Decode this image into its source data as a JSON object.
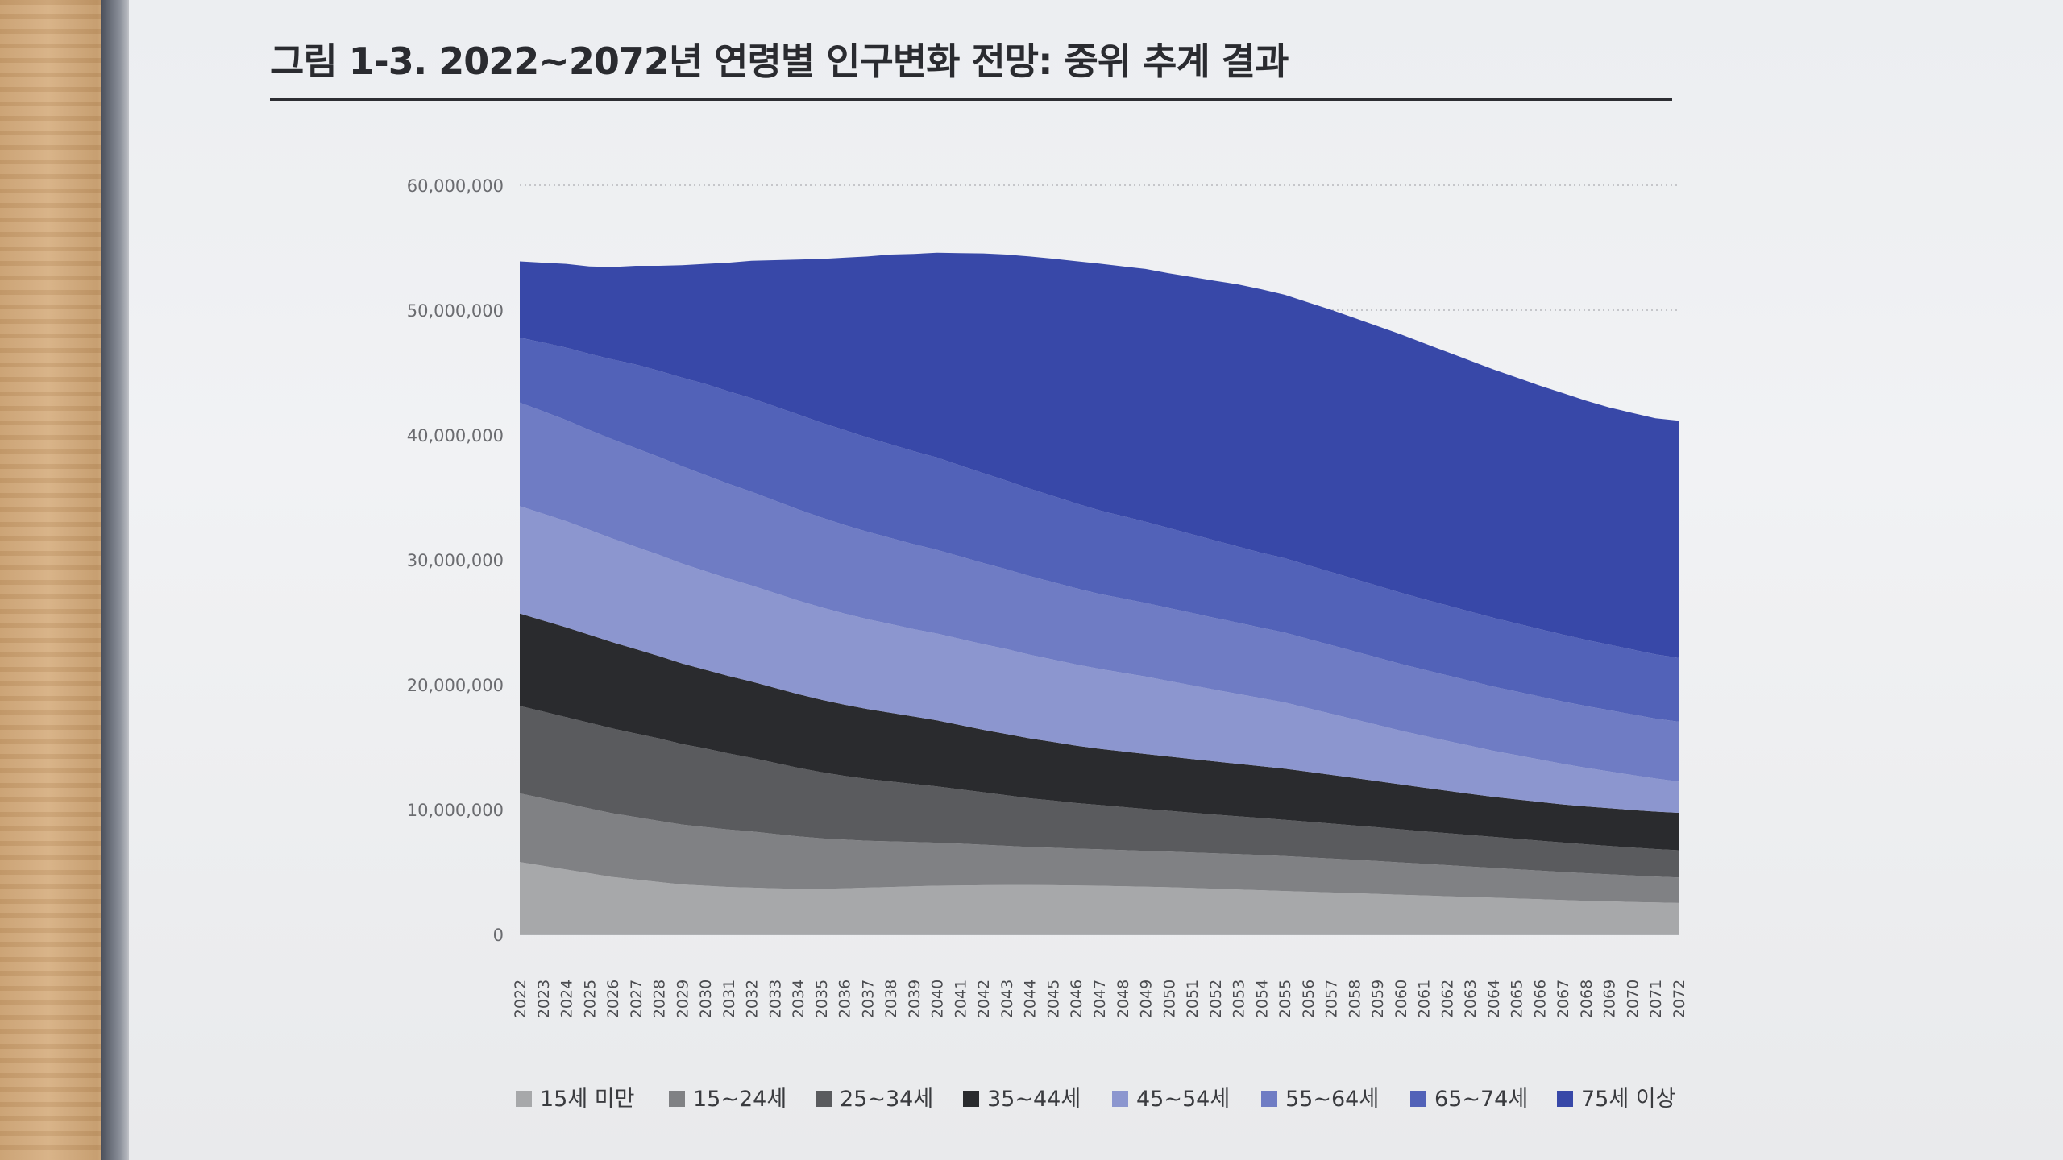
{
  "figure": {
    "title": "그림 1-3. 2022~2072년 연령별 인구변화 전망: 중위 추계 결과"
  },
  "chart_data": {
    "type": "area",
    "stacked": true,
    "title": "그림 1-3. 2022~2072년 연령별 인구변화 전망: 중위 추계 결과",
    "xlabel": "",
    "ylabel": "",
    "ylim": [
      0,
      60000000
    ],
    "yticks": [
      0,
      10000000,
      20000000,
      30000000,
      40000000,
      50000000,
      60000000
    ],
    "ytick_labels": [
      "0",
      "10,000,000",
      "20,000,000",
      "30,000,000",
      "40,000,000",
      "50,000,000",
      "60,000,000"
    ],
    "grid": "horizontal dotted",
    "legend_position": "bottom",
    "x": [
      "2022",
      "2023",
      "2024",
      "2025",
      "2026",
      "2027",
      "2028",
      "2029",
      "2030",
      "2031",
      "2032",
      "2033",
      "2034",
      "2035",
      "2036",
      "2037",
      "2038",
      "2039",
      "2040",
      "2041",
      "2042",
      "2043",
      "2044",
      "2045",
      "2046",
      "2047",
      "2048",
      "2049",
      "2050",
      "2051",
      "2052",
      "2053",
      "2054",
      "2055",
      "2056",
      "2057",
      "2058",
      "2059",
      "2060",
      "2061",
      "2062",
      "2063",
      "2064",
      "2065",
      "2066",
      "2067",
      "2068",
      "2069",
      "2070",
      "2071",
      "2072"
    ],
    "series": [
      {
        "name": "15세 미만",
        "color": "#a7a8aa",
        "values": [
          5800000,
          5500000,
          5200000,
          4900000,
          4600000,
          4400000,
          4200000,
          4000000,
          3900000,
          3800000,
          3750000,
          3700000,
          3650000,
          3650000,
          3700000,
          3750000,
          3800000,
          3850000,
          3900000,
          3920000,
          3940000,
          3950000,
          3950000,
          3940000,
          3920000,
          3900000,
          3860000,
          3820000,
          3780000,
          3720000,
          3660000,
          3600000,
          3540000,
          3480000,
          3420000,
          3360000,
          3300000,
          3240000,
          3180000,
          3120000,
          3060000,
          3000000,
          2940000,
          2880000,
          2820000,
          2760000,
          2700000,
          2650000,
          2600000,
          2560000,
          2520000
        ]
      },
      {
        "name": "15~24세",
        "color": "#808184",
        "values": [
          5500000,
          5400000,
          5300000,
          5200000,
          5100000,
          5000000,
          4900000,
          4800000,
          4700000,
          4600000,
          4500000,
          4350000,
          4200000,
          4050000,
          3900000,
          3750000,
          3650000,
          3550000,
          3450000,
          3350000,
          3250000,
          3150000,
          3050000,
          3000000,
          2950000,
          2920000,
          2900000,
          2880000,
          2860000,
          2850000,
          2840000,
          2830000,
          2820000,
          2800000,
          2760000,
          2720000,
          2680000,
          2640000,
          2590000,
          2540000,
          2490000,
          2440000,
          2390000,
          2340000,
          2290000,
          2240000,
          2200000,
          2160000,
          2120000,
          2080000,
          2050000
        ]
      },
      {
        "name": "25~34세",
        "color": "#5a5b5e",
        "values": [
          7000000,
          6950000,
          6900000,
          6850000,
          6800000,
          6700000,
          6600000,
          6450000,
          6300000,
          6100000,
          5900000,
          5700000,
          5500000,
          5300000,
          5100000,
          4950000,
          4800000,
          4650000,
          4500000,
          4350000,
          4200000,
          4050000,
          3900000,
          3780000,
          3650000,
          3550000,
          3450000,
          3350000,
          3260000,
          3180000,
          3100000,
          3030000,
          2960000,
          2900000,
          2850000,
          2800000,
          2750000,
          2700000,
          2650000,
          2600000,
          2560000,
          2520000,
          2480000,
          2440000,
          2400000,
          2360000,
          2320000,
          2280000,
          2240000,
          2200000,
          2170000
        ]
      },
      {
        "name": "35~44세",
        "color": "#2a2b2e",
        "values": [
          7400000,
          7300000,
          7200000,
          7050000,
          6900000,
          6750000,
          6600000,
          6450000,
          6300000,
          6200000,
          6100000,
          6000000,
          5900000,
          5800000,
          5700000,
          5600000,
          5500000,
          5400000,
          5300000,
          5150000,
          5000000,
          4900000,
          4800000,
          4700000,
          4600000,
          4500000,
          4450000,
          4400000,
          4350000,
          4300000,
          4250000,
          4200000,
          4150000,
          4100000,
          4000000,
          3900000,
          3800000,
          3700000,
          3600000,
          3500000,
          3400000,
          3300000,
          3200000,
          3150000,
          3100000,
          3050000,
          3030000,
          3020000,
          3010000,
          3000000,
          3000000
        ]
      },
      {
        "name": "45~54세",
        "color": "#8c96cf",
        "values": [
          8600000,
          8550000,
          8500000,
          8400000,
          8300000,
          8200000,
          8100000,
          8000000,
          7900000,
          7800000,
          7700000,
          7600000,
          7500000,
          7400000,
          7300000,
          7200000,
          7100000,
          7000000,
          6950000,
          6900000,
          6850000,
          6800000,
          6700000,
          6600000,
          6500000,
          6400000,
          6300000,
          6200000,
          6050000,
          5900000,
          5750000,
          5600000,
          5450000,
          5300000,
          5100000,
          4900000,
          4700000,
          4500000,
          4300000,
          4150000,
          4000000,
          3850000,
          3700000,
          3550000,
          3400000,
          3250000,
          3100000,
          2950000,
          2800000,
          2650000,
          2500000
        ]
      },
      {
        "name": "55~64세",
        "color": "#6f7cc4",
        "values": [
          8300000,
          8200000,
          8100000,
          8000000,
          7950000,
          7900000,
          7850000,
          7800000,
          7700000,
          7600000,
          7500000,
          7400000,
          7300000,
          7200000,
          7100000,
          7000000,
          6900000,
          6800000,
          6700000,
          6600000,
          6500000,
          6400000,
          6300000,
          6200000,
          6100000,
          6000000,
          5950000,
          5900000,
          5850000,
          5800000,
          5750000,
          5700000,
          5650000,
          5600000,
          5550000,
          5500000,
          5450000,
          5400000,
          5350000,
          5300000,
          5250000,
          5200000,
          5150000,
          5100000,
          5050000,
          5000000,
          4950000,
          4900000,
          4850000,
          4800000,
          4800000
        ]
      },
      {
        "name": "65~74세",
        "color": "#5262b8",
        "values": [
          5200000,
          5500000,
          5800000,
          6100000,
          6400000,
          6700000,
          6900000,
          7100000,
          7300000,
          7400000,
          7500000,
          7550000,
          7600000,
          7600000,
          7600000,
          7550000,
          7500000,
          7450000,
          7400000,
          7300000,
          7200000,
          7100000,
          7000000,
          6900000,
          6800000,
          6700000,
          6600000,
          6500000,
          6400000,
          6300000,
          6200000,
          6100000,
          6000000,
          5950000,
          5900000,
          5850000,
          5800000,
          5750000,
          5700000,
          5650000,
          5600000,
          5550000,
          5500000,
          5450000,
          5400000,
          5350000,
          5300000,
          5250000,
          5200000,
          5150000,
          5100000
        ]
      },
      {
        "name": "75세 이상",
        "color": "#3848a8",
        "values": [
          6100000,
          6400000,
          6700000,
          7000000,
          7400000,
          7900000,
          8400000,
          9000000,
          9600000,
          10300000,
          11000000,
          11700000,
          12400000,
          13100000,
          13800000,
          14500000,
          15200000,
          15800000,
          16400000,
          17000000,
          17600000,
          18100000,
          18600000,
          19000000,
          19400000,
          19750000,
          20000000,
          20250000,
          20400000,
          20600000,
          20800000,
          21000000,
          21100000,
          21100000,
          21050000,
          21000000,
          20900000,
          20800000,
          20700000,
          20500000,
          20300000,
          20100000,
          19900000,
          19700000,
          19500000,
          19350000,
          19150000,
          19000000,
          18950000,
          18900000,
          19000000
        ]
      }
    ]
  }
}
